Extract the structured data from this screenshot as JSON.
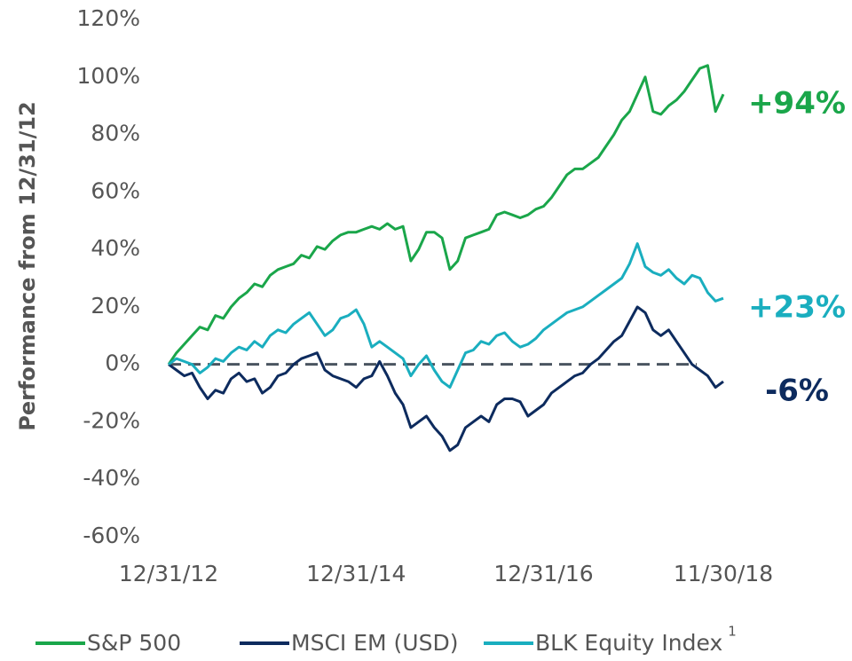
{
  "chart_data": {
    "type": "line",
    "y_label": "Performance from 12/31/12",
    "categories": [
      "12/31/12",
      null,
      null,
      null,
      null,
      null,
      null,
      null,
      null,
      null,
      null,
      null,
      null,
      null,
      null,
      null,
      null,
      null,
      null,
      null,
      null,
      null,
      null,
      null,
      "12/31/14",
      null,
      null,
      null,
      null,
      null,
      null,
      null,
      null,
      null,
      null,
      null,
      null,
      null,
      null,
      null,
      null,
      null,
      null,
      null,
      null,
      null,
      null,
      null,
      "12/31/16",
      null,
      null,
      null,
      null,
      null,
      null,
      null,
      null,
      null,
      null,
      null,
      null,
      null,
      null,
      null,
      null,
      null,
      null,
      null,
      null,
      null,
      null,
      "11/30/18"
    ],
    "series": [
      {
        "name": "S&P 500",
        "color": "#1aa64a",
        "end_label": "+94%",
        "values": [
          0,
          4,
          7,
          10,
          13,
          12,
          17,
          16,
          20,
          23,
          25,
          28,
          27,
          31,
          33,
          34,
          35,
          38,
          37,
          41,
          40,
          43,
          45,
          46,
          46,
          47,
          48,
          47,
          49,
          47,
          48,
          36,
          40,
          46,
          46,
          44,
          33,
          36,
          44,
          45,
          46,
          47,
          52,
          53,
          52,
          51,
          52,
          54,
          55,
          58,
          62,
          66,
          68,
          68,
          70,
          72,
          76,
          80,
          85,
          88,
          94,
          100,
          88,
          87,
          90,
          92,
          95,
          99,
          103,
          104,
          88,
          94
        ]
      },
      {
        "name": "MSCI EM (USD)",
        "color": "#0d2b5e",
        "end_label": "-6%",
        "values": [
          0,
          -2,
          -4,
          -3,
          -8,
          -12,
          -9,
          -10,
          -5,
          -3,
          -6,
          -5,
          -10,
          -8,
          -4,
          -3,
          0,
          2,
          3,
          4,
          -2,
          -4,
          -5,
          -6,
          -8,
          -5,
          -4,
          1,
          -4,
          -10,
          -14,
          -22,
          -20,
          -18,
          -22,
          -25,
          -30,
          -28,
          -22,
          -20,
          -18,
          -20,
          -14,
          -12,
          -12,
          -13,
          -18,
          -16,
          -14,
          -10,
          -8,
          -6,
          -4,
          -3,
          0,
          2,
          5,
          8,
          10,
          15,
          20,
          18,
          12,
          10,
          12,
          8,
          4,
          0,
          -2,
          -4,
          -8,
          -6
        ]
      },
      {
        "name": "BLK Equity Index",
        "color": "#1aaebf",
        "end_label": "+23%",
        "footnote_marker": "1",
        "values": [
          0,
          2,
          1,
          0,
          -3,
          -1,
          2,
          1,
          4,
          6,
          5,
          8,
          6,
          10,
          12,
          11,
          14,
          16,
          18,
          14,
          10,
          12,
          16,
          17,
          19,
          14,
          6,
          8,
          6,
          4,
          2,
          -4,
          0,
          3,
          -2,
          -6,
          -8,
          -2,
          4,
          5,
          8,
          7,
          10,
          11,
          8,
          6,
          7,
          9,
          12,
          14,
          16,
          18,
          19,
          20,
          22,
          24,
          26,
          28,
          30,
          35,
          42,
          34,
          32,
          31,
          33,
          30,
          28,
          31,
          30,
          25,
          22,
          23
        ]
      }
    ],
    "ylim": [
      -60,
      120
    ],
    "yticks": [
      {
        "value": -60,
        "label": "-60%"
      },
      {
        "value": -40,
        "label": "-40%"
      },
      {
        "value": -20,
        "label": "-20%"
      },
      {
        "value": 0,
        "label": "0%"
      },
      {
        "value": 20,
        "label": "20%"
      },
      {
        "value": 40,
        "label": "40%"
      },
      {
        "value": 60,
        "label": "60%"
      },
      {
        "value": 80,
        "label": "80%"
      },
      {
        "value": 100,
        "label": "100%"
      },
      {
        "value": 120,
        "label": "120%"
      }
    ],
    "reference_line": 0,
    "legend": "bottom"
  }
}
